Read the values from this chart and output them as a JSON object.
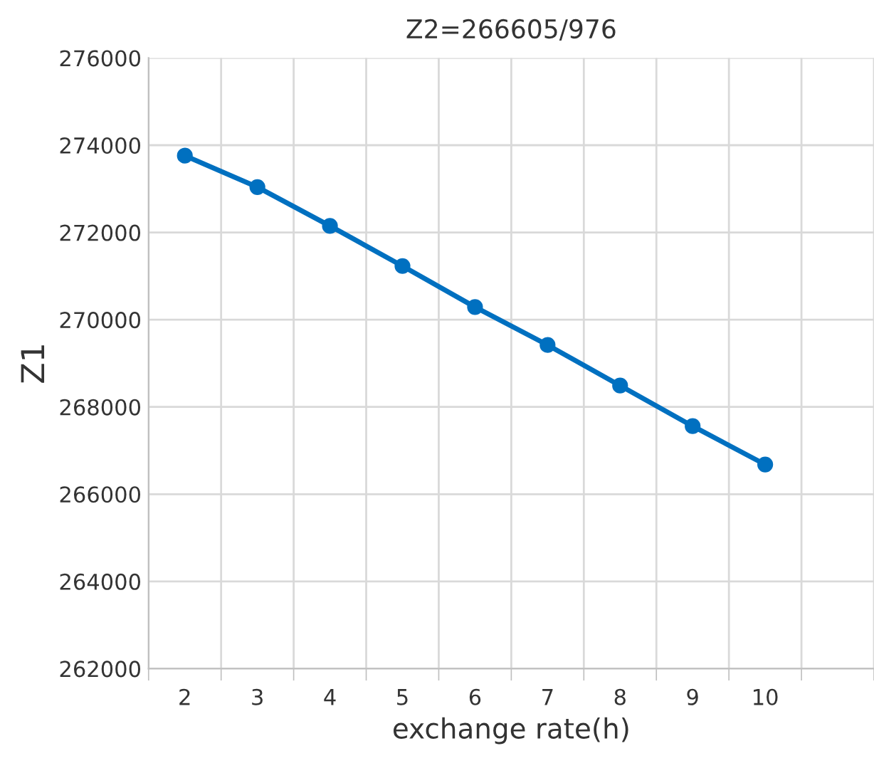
{
  "chart_data": {
    "type": "line",
    "title": "Z2=266605/976",
    "xlabel": "exchange rate(h)",
    "ylabel": "Z1",
    "categories": [
      "2",
      "3",
      "4",
      "5",
      "6",
      "7",
      "8",
      "9",
      "10",
      null
    ],
    "series": [
      {
        "color": "#0070c0",
        "values": [
          273760,
          273040,
          272150,
          271230,
          270290,
          269420,
          268490,
          267560,
          266680,
          null
        ]
      }
    ],
    "ylim": [
      262000,
      276000
    ],
    "yticks": [
      262000,
      264000,
      266000,
      268000,
      270000,
      272000,
      274000,
      276000
    ],
    "grid": true,
    "marker": "circle",
    "line_style": "solid"
  }
}
